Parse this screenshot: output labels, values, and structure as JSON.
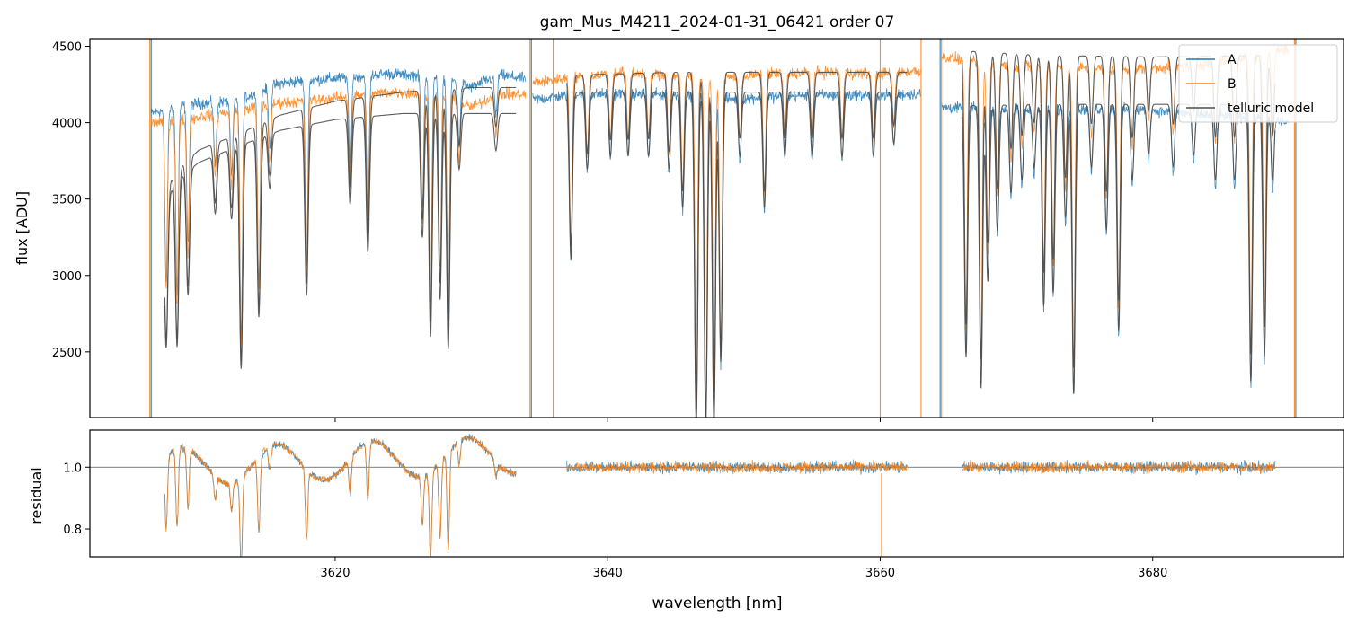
{
  "chart_data": {
    "type": "line",
    "title": "gam_Mus_M4211_2024-01-31_06421  order 07",
    "xlabel": "wavelength [nm]",
    "xlim": [
      3602,
      3694
    ],
    "x_ticks": [
      3620,
      3640,
      3660,
      3680
    ],
    "x_tick_labels": [
      "3620",
      "3640",
      "3660",
      "3680"
    ],
    "top_panel": {
      "ylabel": "flux [ADU]",
      "ylim": [
        2070,
        4550
      ],
      "y_ticks": [
        2500,
        3000,
        3500,
        4000,
        4500
      ],
      "y_tick_labels": [
        "2500",
        "3000",
        "3500",
        "4000",
        "4500"
      ],
      "legend": {
        "position": "top-right",
        "entries": [
          {
            "label": "A",
            "color": "#1f77b4"
          },
          {
            "label": "B",
            "color": "#ff7f0e"
          },
          {
            "label": "telluric model",
            "color": "#4d4d4d"
          }
        ]
      },
      "series": [
        {
          "name": "A",
          "color": "#1f77b4",
          "segments": [
            {
              "x0": 3606.5,
              "x1": 3634.0,
              "base": [
                [
                  3606.5,
                  4060
                ],
                [
                  3609,
                  4120
                ],
                [
                  3611,
                  4130
                ],
                [
                  3613,
                  4150
                ],
                [
                  3616,
                  4260
                ],
                [
                  3620,
                  4290
                ],
                [
                  3624,
                  4320
                ],
                [
                  3628,
                  4300
                ],
                [
                  3630,
                  4230
                ],
                [
                  3632,
                  4310
                ],
                [
                  3634,
                  4290
                ]
              ]
            },
            {
              "x0": 3634.5,
              "x1": 3663.0,
              "base": [
                [
                  3634.5,
                  4150
                ],
                [
                  3637,
                  4180
                ],
                [
                  3641,
                  4190
                ],
                [
                  3645,
                  4180
                ],
                [
                  3648,
                  4150
                ],
                [
                  3652,
                  4170
                ],
                [
                  3656,
                  4180
                ],
                [
                  3660,
                  4180
                ],
                [
                  3663,
                  4190
                ]
              ]
            },
            {
              "x0": 3664.5,
              "x1": 3690.0,
              "base": [
                [
                  3664.5,
                  4100
                ],
                [
                  3668,
                  4090
                ],
                [
                  3672,
                  4080
                ],
                [
                  3676,
                  4090
                ],
                [
                  3680,
                  4080
                ],
                [
                  3684,
                  4050
                ],
                [
                  3688,
                  4030
                ],
                [
                  3690,
                  4000
                ]
              ]
            }
          ],
          "spikes": [
            3606.5,
            3634.4,
            3664.4,
            3690.5
          ]
        },
        {
          "name": "B",
          "color": "#ff7f0e",
          "segments": [
            {
              "x0": 3606.5,
              "x1": 3634.0,
              "base": [
                [
                  3606.5,
                  4000
                ],
                [
                  3609,
                  4020
                ],
                [
                  3612,
                  4070
                ],
                [
                  3616,
                  4130
                ],
                [
                  3620,
                  4160
                ],
                [
                  3624,
                  4200
                ],
                [
                  3628,
                  4180
                ],
                [
                  3630,
                  4100
                ],
                [
                  3632,
                  4190
                ],
                [
                  3634,
                  4180
                ]
              ]
            },
            {
              "x0": 3634.5,
              "x1": 3663.0,
              "base": [
                [
                  3634.5,
                  4260
                ],
                [
                  3637,
                  4290
                ],
                [
                  3641,
                  4330
                ],
                [
                  3645,
                  4310
                ],
                [
                  3648,
                  4290
                ],
                [
                  3652,
                  4320
                ],
                [
                  3656,
                  4330
                ],
                [
                  3660,
                  4320
                ],
                [
                  3663,
                  4340
                ]
              ]
            },
            {
              "x0": 3664.5,
              "x1": 3690.0,
              "base": [
                [
                  3664.5,
                  4430
                ],
                [
                  3667,
                  4400
                ],
                [
                  3670,
                  4370
                ],
                [
                  3674,
                  4360
                ],
                [
                  3678,
                  4350
                ],
                [
                  3682,
                  4370
                ],
                [
                  3686,
                  4410
                ],
                [
                  3690,
                  4490
                ]
              ]
            }
          ],
          "spikes": [
            3606.4,
            3634.3,
            3636.0,
            3660.0,
            3663.0,
            3664.5,
            3690.4
          ]
        },
        {
          "name": "telluric model",
          "color": "#4d4d4d",
          "segments": [
            {
              "x0": 3607.5,
              "x1": 3633.3,
              "base": [
                [
                  3607.5,
                  3560
                ],
                [
                  3608.5,
                  3700
                ],
                [
                  3610,
                  3820
                ],
                [
                  3613,
                  3930
                ],
                [
                  3616,
                  4050
                ],
                [
                  3620,
                  4140
                ],
                [
                  3625,
                  4200
                ],
                [
                  3630,
                  4230
                ],
                [
                  3633.3,
                  4230
                ]
              ]
            },
            {
              "x0": 3607.5,
              "x1": 3633.3,
              "base": [
                [
                  3607.5,
                  3490
                ],
                [
                  3608.5,
                  3630
                ],
                [
                  3610,
                  3740
                ],
                [
                  3613,
                  3850
                ],
                [
                  3616,
                  3950
                ],
                [
                  3620,
                  4020
                ],
                [
                  3625,
                  4060
                ],
                [
                  3630,
                  4060
                ],
                [
                  3633.3,
                  4060
                ]
              ]
            },
            {
              "x0": 3637.0,
              "x1": 3662.0,
              "base": [
                [
                  3637,
                  4200
                ],
                [
                  3645,
                  4200
                ],
                [
                  3652,
                  4200
                ],
                [
                  3662,
                  4200
                ]
              ]
            },
            {
              "x0": 3637.0,
              "x1": 3662.0,
              "base": [
                [
                  3637,
                  4310
                ],
                [
                  3645,
                  4330
                ],
                [
                  3652,
                  4330
                ],
                [
                  3662,
                  4330
                ]
              ]
            },
            {
              "x0": 3666.0,
              "x1": 3689.0,
              "base": [
                [
                  3666,
                  4110
                ],
                [
                  3672,
                  4120
                ],
                [
                  3680,
                  4120
                ],
                [
                  3689,
                  4120
                ]
              ]
            },
            {
              "x0": 3666.0,
              "x1": 3689.0,
              "base": [
                [
                  3666,
                  4470
                ],
                [
                  3672,
                  4440
                ],
                [
                  3680,
                  4430
                ],
                [
                  3689,
                  4440
                ]
              ]
            }
          ]
        }
      ],
      "absorption_lines": [
        [
          3607.6,
          0.28
        ],
        [
          3608.4,
          0.3
        ],
        [
          3609.2,
          0.22
        ],
        [
          3611.2,
          0.1
        ],
        [
          3612.4,
          0.12
        ],
        [
          3613.1,
          0.38
        ],
        [
          3614.4,
          0.3
        ],
        [
          3615.2,
          0.09
        ],
        [
          3617.9,
          0.28
        ],
        [
          3621.1,
          0.14
        ],
        [
          3622.4,
          0.22
        ],
        [
          3626.4,
          0.2
        ],
        [
          3627.0,
          0.36
        ],
        [
          3627.7,
          0.3
        ],
        [
          3628.3,
          0.38
        ],
        [
          3629.1,
          0.09
        ],
        [
          3631.8,
          0.06
        ],
        [
          3637.3,
          0.26
        ],
        [
          3638.5,
          0.12
        ],
        [
          3640.2,
          0.1
        ],
        [
          3641.5,
          0.1
        ],
        [
          3643.0,
          0.1
        ],
        [
          3644.5,
          0.12
        ],
        [
          3645.5,
          0.18
        ],
        [
          3646.5,
          0.52
        ],
        [
          3647.2,
          0.52
        ],
        [
          3647.8,
          0.52
        ],
        [
          3648.3,
          0.42
        ],
        [
          3649.7,
          0.1
        ],
        [
          3651.5,
          0.18
        ],
        [
          3653.0,
          0.1
        ],
        [
          3655.0,
          0.1
        ],
        [
          3657.2,
          0.1
        ],
        [
          3659.5,
          0.1
        ],
        [
          3661.0,
          0.08
        ],
        [
          3666.3,
          0.4
        ],
        [
          3667.4,
          0.45
        ],
        [
          3667.9,
          0.28
        ],
        [
          3668.6,
          0.2
        ],
        [
          3669.6,
          0.14
        ],
        [
          3670.4,
          0.12
        ],
        [
          3671.3,
          0.1
        ],
        [
          3672.0,
          0.32
        ],
        [
          3672.7,
          0.3
        ],
        [
          3673.6,
          0.18
        ],
        [
          3674.2,
          0.46
        ],
        [
          3675.5,
          0.1
        ],
        [
          3676.6,
          0.2
        ],
        [
          3677.5,
          0.36
        ],
        [
          3678.5,
          0.12
        ],
        [
          3679.7,
          0.08
        ],
        [
          3681.5,
          0.1
        ],
        [
          3683.0,
          0.08
        ],
        [
          3684.6,
          0.12
        ],
        [
          3686.0,
          0.12
        ],
        [
          3687.2,
          0.44
        ],
        [
          3688.2,
          0.4
        ],
        [
          3688.8,
          0.12
        ]
      ]
    },
    "bottom_panel": {
      "ylabel": "residual",
      "ylim": [
        0.71,
        1.12
      ],
      "y_ticks": [
        0.8,
        1.0
      ],
      "y_tick_labels": [
        "0.8",
        "1.0"
      ],
      "reference_line": 1.0,
      "segments": [
        {
          "x0": 3607.5,
          "x1": 3633.3
        },
        {
          "x0": 3637.0,
          "x1": 3662.0
        },
        {
          "x0": 3666.0,
          "x1": 3689.0
        }
      ],
      "series": [
        {
          "name": "A",
          "color": "#1f77b4"
        },
        {
          "name": "B",
          "color": "#ff7f0e"
        }
      ]
    }
  }
}
